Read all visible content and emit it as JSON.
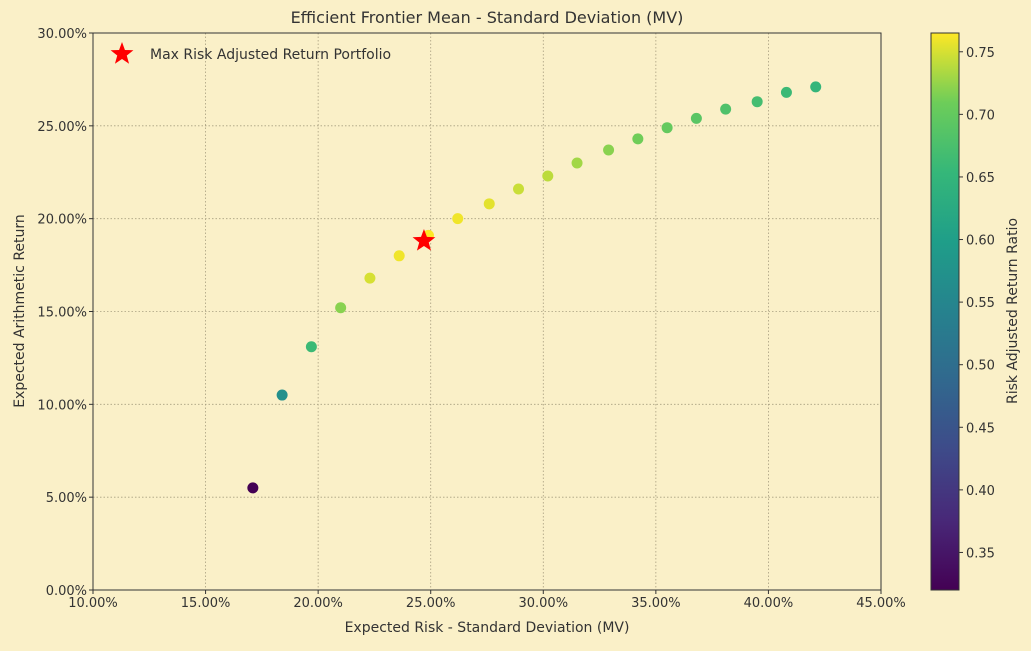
{
  "chart_data": {
    "type": "scatter",
    "title": "Efficient Frontier Mean - Standard Deviation (MV)",
    "xlabel": "Expected Risk - Standard Deviation (MV)",
    "ylabel": "Expected Arithmetic Return",
    "xlim": [
      10.0,
      45.0
    ],
    "ylim": [
      0.0,
      30.0
    ],
    "x_ticks": [
      "10.00%",
      "15.00%",
      "20.00%",
      "25.00%",
      "30.00%",
      "35.00%",
      "40.00%",
      "45.00%"
    ],
    "y_ticks": [
      "0.00%",
      "5.00%",
      "10.00%",
      "15.00%",
      "20.00%",
      "25.00%",
      "30.00%"
    ],
    "grid": true,
    "colorbar": {
      "label": "Risk Adjusted Return Ratio",
      "colormap": "viridis",
      "range": [
        0.32,
        0.765
      ],
      "ticks": [
        "0.35",
        "0.40",
        "0.45",
        "0.50",
        "0.55",
        "0.60",
        "0.65",
        "0.70",
        "0.75"
      ]
    },
    "series": [
      {
        "points": [
          {
            "x": 17.1,
            "y": 5.5,
            "c": 0.32
          },
          {
            "x": 18.4,
            "y": 10.5,
            "c": 0.57
          },
          {
            "x": 19.7,
            "y": 13.1,
            "c": 0.66
          },
          {
            "x": 21.0,
            "y": 15.2,
            "c": 0.72
          },
          {
            "x": 22.3,
            "y": 16.8,
            "c": 0.75
          },
          {
            "x": 23.6,
            "y": 18.0,
            "c": 0.76
          },
          {
            "x": 24.9,
            "y": 19.1,
            "c": 0.765
          },
          {
            "x": 26.2,
            "y": 20.0,
            "c": 0.76
          },
          {
            "x": 27.6,
            "y": 20.8,
            "c": 0.755
          },
          {
            "x": 28.9,
            "y": 21.6,
            "c": 0.745
          },
          {
            "x": 30.2,
            "y": 22.3,
            "c": 0.74
          },
          {
            "x": 31.5,
            "y": 23.0,
            "c": 0.73
          },
          {
            "x": 32.9,
            "y": 23.7,
            "c": 0.72
          },
          {
            "x": 34.2,
            "y": 24.3,
            "c": 0.71
          },
          {
            "x": 35.5,
            "y": 24.9,
            "c": 0.7
          },
          {
            "x": 36.8,
            "y": 25.4,
            "c": 0.69
          },
          {
            "x": 38.1,
            "y": 25.9,
            "c": 0.68
          },
          {
            "x": 39.5,
            "y": 26.3,
            "c": 0.67
          },
          {
            "x": 40.8,
            "y": 26.8,
            "c": 0.66
          },
          {
            "x": 42.1,
            "y": 27.1,
            "c": 0.65
          }
        ]
      }
    ],
    "highlight": {
      "name": "Max Risk Adjusted Return Portfolio",
      "x": 24.7,
      "y": 18.8,
      "color": "#FF0000",
      "marker": "star"
    },
    "legend": {
      "position": "top-left",
      "entries": [
        "Max Risk Adjusted Return Portfolio"
      ]
    },
    "colors": {
      "background": "#FAF0C8",
      "plot_background": "#FAF0C8",
      "grid": "#A89F80",
      "axis": "#333333"
    }
  }
}
